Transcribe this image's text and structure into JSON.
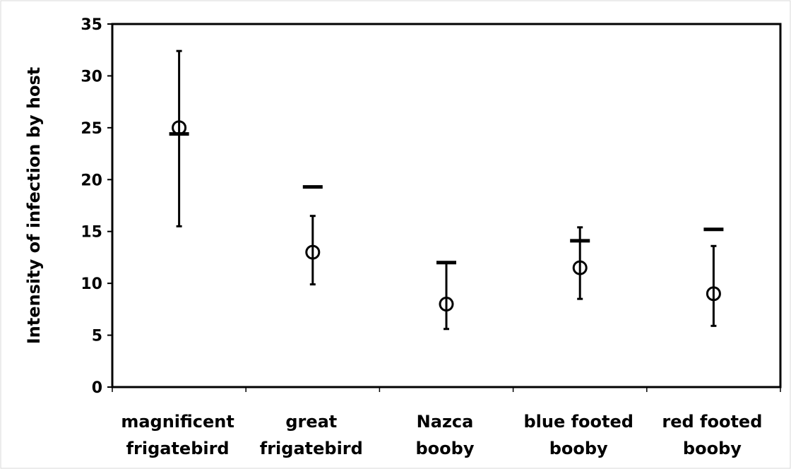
{
  "chart_data": {
    "type": "scatter",
    "title": "",
    "xlabel": "",
    "ylabel": "Intensity of infection by host",
    "ylim": [
      0,
      35
    ],
    "yticks": [
      0,
      5,
      10,
      15,
      20,
      25,
      30,
      35
    ],
    "categories": [
      [
        "magnificent",
        "frigatebird"
      ],
      [
        "great",
        "frigatebird"
      ],
      [
        "Nazca",
        "booby"
      ],
      [
        "blue footed",
        "booby"
      ],
      [
        "red footed",
        "booby"
      ]
    ],
    "series": [
      {
        "marker": "circle",
        "values": [
          25.0,
          13.0,
          8.0,
          11.5,
          9.0
        ],
        "error_low": [
          15.5,
          9.9,
          5.6,
          8.5,
          5.9
        ],
        "error_high": [
          32.4,
          16.5,
          12.0,
          15.4,
          13.6
        ]
      },
      {
        "marker": "dash",
        "values": [
          24.4,
          19.3,
          12.0,
          14.1,
          15.2
        ]
      }
    ],
    "grid": false,
    "legend": "none"
  }
}
